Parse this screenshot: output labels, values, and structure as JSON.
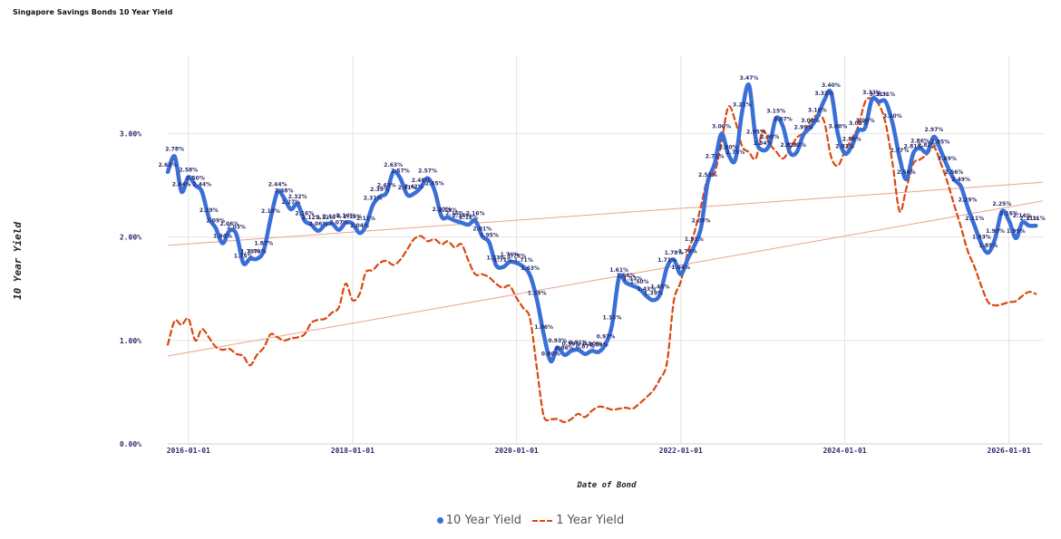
{
  "chart_data": {
    "type": "line",
    "title": "Singapore Savings Bonds 10 Year Yield",
    "xlabel": "Date of Bond",
    "ylabel": "10 Year Yield",
    "ylim": [
      0,
      3.75
    ],
    "xlim": [
      "2015-10-01",
      "2026-06-01"
    ],
    "y_ticks": [
      "0.00%",
      "1.00%",
      "2.00%",
      "3.00%"
    ],
    "x_ticks": [
      "2016-01-01",
      "2018-01-01",
      "2020-01-01",
      "2022-01-01",
      "2024-01-01",
      "2026-01-01"
    ],
    "grid": true,
    "legend_position": "bottom",
    "series": [
      {
        "name": "10 Year Yield",
        "color": "#3a6fd8",
        "style": "solid",
        "points": [
          [
            "2015-10-01",
            2.63
          ],
          [
            "2015-11-01",
            2.78
          ],
          [
            "2015-12-01",
            2.44
          ],
          [
            "2016-01-01",
            2.58
          ],
          [
            "2016-02-01",
            2.5
          ],
          [
            "2016-03-01",
            2.44
          ],
          [
            "2016-04-01",
            2.19
          ],
          [
            "2016-05-01",
            2.09
          ],
          [
            "2016-06-01",
            1.94
          ],
          [
            "2016-07-01",
            2.06
          ],
          [
            "2016-08-01",
            2.03
          ],
          [
            "2016-09-01",
            1.75
          ],
          [
            "2016-10-01",
            1.79
          ],
          [
            "2016-11-01",
            1.79
          ],
          [
            "2016-12-01",
            1.87
          ],
          [
            "2017-01-01",
            2.18
          ],
          [
            "2017-02-01",
            2.44
          ],
          [
            "2017-03-01",
            2.38
          ],
          [
            "2017-04-01",
            2.27
          ],
          [
            "2017-05-01",
            2.32
          ],
          [
            "2017-06-01",
            2.16
          ],
          [
            "2017-07-01",
            2.12
          ],
          [
            "2017-08-01",
            2.06
          ],
          [
            "2017-09-01",
            2.12
          ],
          [
            "2017-10-01",
            2.13
          ],
          [
            "2017-11-01",
            2.07
          ],
          [
            "2017-12-01",
            2.14
          ],
          [
            "2018-01-01",
            2.13
          ],
          [
            "2018-02-01",
            2.04
          ],
          [
            "2018-03-01",
            2.11
          ],
          [
            "2018-04-01",
            2.31
          ],
          [
            "2018-05-01",
            2.39
          ],
          [
            "2018-06-01",
            2.43
          ],
          [
            "2018-07-01",
            2.63
          ],
          [
            "2018-08-01",
            2.57
          ],
          [
            "2018-09-01",
            2.41
          ],
          [
            "2018-10-01",
            2.42
          ],
          [
            "2018-11-01",
            2.48
          ],
          [
            "2018-12-01",
            2.57
          ],
          [
            "2019-01-01",
            2.45
          ],
          [
            "2019-02-01",
            2.2
          ],
          [
            "2019-03-01",
            2.19
          ],
          [
            "2019-04-01",
            2.16
          ],
          [
            "2019-05-01",
            2.14
          ],
          [
            "2019-06-01",
            2.12
          ],
          [
            "2019-07-01",
            2.16
          ],
          [
            "2019-08-01",
            2.01
          ],
          [
            "2019-09-01",
            1.95
          ],
          [
            "2019-10-01",
            1.73
          ],
          [
            "2019-11-01",
            1.71
          ],
          [
            "2019-12-01",
            1.76
          ],
          [
            "2020-01-01",
            1.75
          ],
          [
            "2020-02-01",
            1.71
          ],
          [
            "2020-03-01",
            1.63
          ],
          [
            "2020-04-01",
            1.39
          ],
          [
            "2020-05-01",
            1.06
          ],
          [
            "2020-06-01",
            0.8
          ],
          [
            "2020-07-01",
            0.93
          ],
          [
            "2020-08-01",
            0.86
          ],
          [
            "2020-09-01",
            0.9
          ],
          [
            "2020-10-01",
            0.91
          ],
          [
            "2020-11-01",
            0.87
          ],
          [
            "2020-12-01",
            0.9
          ],
          [
            "2021-01-01",
            0.89
          ],
          [
            "2021-02-01",
            0.97
          ],
          [
            "2021-03-01",
            1.15
          ],
          [
            "2021-04-01",
            1.61
          ],
          [
            "2021-05-01",
            1.56
          ],
          [
            "2021-06-01",
            1.53
          ],
          [
            "2021-07-01",
            1.5
          ],
          [
            "2021-08-01",
            1.43
          ],
          [
            "2021-09-01",
            1.39
          ],
          [
            "2021-10-01",
            1.45
          ],
          [
            "2021-11-01",
            1.71
          ],
          [
            "2021-12-01",
            1.78
          ],
          [
            "2022-01-01",
            1.64
          ],
          [
            "2022-02-01",
            1.79
          ],
          [
            "2022-03-01",
            1.91
          ],
          [
            "2022-04-01",
            2.09
          ],
          [
            "2022-05-01",
            2.53
          ],
          [
            "2022-06-01",
            2.71
          ],
          [
            "2022-07-01",
            3.0
          ],
          [
            "2022-08-01",
            2.8
          ],
          [
            "2022-09-01",
            2.75
          ],
          [
            "2022-10-01",
            3.21
          ],
          [
            "2022-11-01",
            3.47
          ],
          [
            "2022-12-01",
            2.95
          ],
          [
            "2023-01-01",
            2.84
          ],
          [
            "2023-02-01",
            2.9
          ],
          [
            "2023-03-01",
            3.15
          ],
          [
            "2023-04-01",
            3.07
          ],
          [
            "2023-05-01",
            2.82
          ],
          [
            "2023-06-01",
            2.82
          ],
          [
            "2023-07-01",
            2.99
          ],
          [
            "2023-08-01",
            3.06
          ],
          [
            "2023-09-01",
            3.16
          ],
          [
            "2023-10-01",
            3.32
          ],
          [
            "2023-11-01",
            3.4
          ],
          [
            "2023-12-01",
            3.0
          ],
          [
            "2024-01-01",
            2.81
          ],
          [
            "2024-02-01",
            2.88
          ],
          [
            "2024-03-01",
            3.03
          ],
          [
            "2024-04-01",
            3.06
          ],
          [
            "2024-05-01",
            3.33
          ],
          [
            "2024-06-01",
            3.31
          ],
          [
            "2024-07-01",
            3.31
          ],
          [
            "2024-08-01",
            3.1
          ],
          [
            "2024-09-01",
            2.77
          ],
          [
            "2024-10-01",
            2.56
          ],
          [
            "2024-11-01",
            2.81
          ],
          [
            "2024-12-01",
            2.86
          ],
          [
            "2025-01-01",
            2.82
          ],
          [
            "2025-02-01",
            2.97
          ],
          [
            "2025-03-01",
            2.85
          ],
          [
            "2025-04-01",
            2.69
          ],
          [
            "2025-05-01",
            2.56
          ],
          [
            "2025-06-01",
            2.49
          ],
          [
            "2025-07-01",
            2.29
          ],
          [
            "2025-08-01",
            2.11
          ],
          [
            "2025-09-01",
            1.93
          ],
          [
            "2025-10-01",
            1.85
          ],
          [
            "2025-11-01",
            1.99
          ],
          [
            "2025-12-01",
            2.25
          ],
          [
            "2026-01-01",
            2.16
          ],
          [
            "2026-02-01",
            1.99
          ],
          [
            "2026-03-01",
            2.14
          ],
          [
            "2026-04-01",
            2.11
          ],
          [
            "2026-05-01",
            2.11
          ]
        ],
        "trend": [
          [
            "2015-10-01",
            1.92
          ],
          [
            "2026-06-01",
            2.53
          ]
        ]
      },
      {
        "name": "1 Year Yield",
        "color": "#d9480f",
        "style": "dashed",
        "points": [
          [
            "2015-10-01",
            0.96
          ],
          [
            "2015-11-01",
            1.19
          ],
          [
            "2015-12-01",
            1.15
          ],
          [
            "2016-01-01",
            1.21
          ],
          [
            "2016-02-01",
            1.0
          ],
          [
            "2016-03-01",
            1.11
          ],
          [
            "2016-04-01",
            1.03
          ],
          [
            "2016-05-01",
            0.94
          ],
          [
            "2016-06-01",
            0.91
          ],
          [
            "2016-07-01",
            0.92
          ],
          [
            "2016-08-01",
            0.87
          ],
          [
            "2016-09-01",
            0.85
          ],
          [
            "2016-10-01",
            0.76
          ],
          [
            "2016-11-01",
            0.86
          ],
          [
            "2016-12-01",
            0.93
          ],
          [
            "2017-01-01",
            1.06
          ],
          [
            "2017-02-01",
            1.03
          ],
          [
            "2017-03-01",
            1.0
          ],
          [
            "2017-04-01",
            1.02
          ],
          [
            "2017-05-01",
            1.03
          ],
          [
            "2017-06-01",
            1.06
          ],
          [
            "2017-07-01",
            1.17
          ],
          [
            "2017-08-01",
            1.2
          ],
          [
            "2017-09-01",
            1.21
          ],
          [
            "2017-10-01",
            1.27
          ],
          [
            "2017-11-01",
            1.32
          ],
          [
            "2017-12-01",
            1.55
          ],
          [
            "2018-01-01",
            1.39
          ],
          [
            "2018-02-01",
            1.45
          ],
          [
            "2018-03-01",
            1.66
          ],
          [
            "2018-04-01",
            1.68
          ],
          [
            "2018-05-01",
            1.75
          ],
          [
            "2018-06-01",
            1.77
          ],
          [
            "2018-07-01",
            1.73
          ],
          [
            "2018-08-01",
            1.78
          ],
          [
            "2018-09-01",
            1.88
          ],
          [
            "2018-10-01",
            1.98
          ],
          [
            "2018-11-01",
            2.01
          ],
          [
            "2018-12-01",
            1.96
          ],
          [
            "2019-01-01",
            1.98
          ],
          [
            "2019-02-01",
            1.93
          ],
          [
            "2019-03-01",
            1.96
          ],
          [
            "2019-04-01",
            1.9
          ],
          [
            "2019-05-01",
            1.93
          ],
          [
            "2019-06-01",
            1.77
          ],
          [
            "2019-07-01",
            1.64
          ],
          [
            "2019-08-01",
            1.64
          ],
          [
            "2019-09-01",
            1.61
          ],
          [
            "2019-10-01",
            1.55
          ],
          [
            "2019-11-01",
            1.51
          ],
          [
            "2019-12-01",
            1.53
          ],
          [
            "2020-01-01",
            1.41
          ],
          [
            "2020-02-01",
            1.31
          ],
          [
            "2020-03-01",
            1.21
          ],
          [
            "2020-04-01",
            0.72
          ],
          [
            "2020-05-01",
            0.27
          ],
          [
            "2020-06-01",
            0.24
          ],
          [
            "2020-07-01",
            0.24
          ],
          [
            "2020-08-01",
            0.21
          ],
          [
            "2020-09-01",
            0.24
          ],
          [
            "2020-10-01",
            0.29
          ],
          [
            "2020-11-01",
            0.26
          ],
          [
            "2020-12-01",
            0.32
          ],
          [
            "2021-01-01",
            0.36
          ],
          [
            "2021-02-01",
            0.35
          ],
          [
            "2021-03-01",
            0.33
          ],
          [
            "2021-04-01",
            0.34
          ],
          [
            "2021-05-01",
            0.35
          ],
          [
            "2021-06-01",
            0.34
          ],
          [
            "2021-07-01",
            0.39
          ],
          [
            "2021-08-01",
            0.45
          ],
          [
            "2021-09-01",
            0.52
          ],
          [
            "2021-10-01",
            0.63
          ],
          [
            "2021-11-01",
            0.79
          ],
          [
            "2021-12-01",
            1.38
          ],
          [
            "2022-01-01",
            1.57
          ],
          [
            "2022-02-01",
            1.85
          ],
          [
            "2022-03-01",
            2.03
          ],
          [
            "2022-04-01",
            2.3
          ],
          [
            "2022-05-01",
            2.57
          ],
          [
            "2022-06-01",
            2.62
          ],
          [
            "2022-07-01",
            2.92
          ],
          [
            "2022-08-01",
            3.26
          ],
          [
            "2022-09-01",
            3.12
          ],
          [
            "2022-10-01",
            2.88
          ],
          [
            "2022-11-01",
            2.82
          ],
          [
            "2022-12-01",
            2.76
          ],
          [
            "2023-01-01",
            3.03
          ],
          [
            "2023-02-01",
            2.9
          ],
          [
            "2023-03-01",
            2.83
          ],
          [
            "2023-04-01",
            2.76
          ],
          [
            "2023-05-01",
            2.85
          ],
          [
            "2023-06-01",
            2.96
          ],
          [
            "2023-07-01",
            3.01
          ],
          [
            "2023-08-01",
            3.12
          ],
          [
            "2023-09-01",
            3.18
          ],
          [
            "2023-10-01",
            3.12
          ],
          [
            "2023-11-01",
            2.78
          ],
          [
            "2023-12-01",
            2.69
          ],
          [
            "2024-01-01",
            2.83
          ],
          [
            "2024-02-01",
            2.95
          ],
          [
            "2024-03-01",
            3.07
          ],
          [
            "2024-04-01",
            3.31
          ],
          [
            "2024-05-01",
            3.34
          ],
          [
            "2024-06-01",
            3.28
          ],
          [
            "2024-07-01",
            3.1
          ],
          [
            "2024-08-01",
            2.71
          ],
          [
            "2024-09-01",
            2.25
          ],
          [
            "2024-10-01",
            2.47
          ],
          [
            "2024-11-01",
            2.71
          ],
          [
            "2024-12-01",
            2.75
          ],
          [
            "2025-01-01",
            2.8
          ],
          [
            "2025-02-01",
            2.87
          ],
          [
            "2025-03-01",
            2.73
          ],
          [
            "2025-04-01",
            2.54
          ],
          [
            "2025-05-01",
            2.32
          ],
          [
            "2025-06-01",
            2.1
          ],
          [
            "2025-07-01",
            1.87
          ],
          [
            "2025-08-01",
            1.71
          ],
          [
            "2025-09-01",
            1.52
          ],
          [
            "2025-10-01",
            1.37
          ],
          [
            "2025-11-01",
            1.34
          ],
          [
            "2025-12-01",
            1.35
          ],
          [
            "2026-01-01",
            1.37
          ],
          [
            "2026-02-01",
            1.38
          ],
          [
            "2026-03-01",
            1.43
          ],
          [
            "2026-04-01",
            1.47
          ],
          [
            "2026-05-01",
            1.45
          ]
        ],
        "trend": [
          [
            "2015-10-01",
            0.85
          ],
          [
            "2026-06-01",
            2.35
          ]
        ]
      }
    ]
  }
}
